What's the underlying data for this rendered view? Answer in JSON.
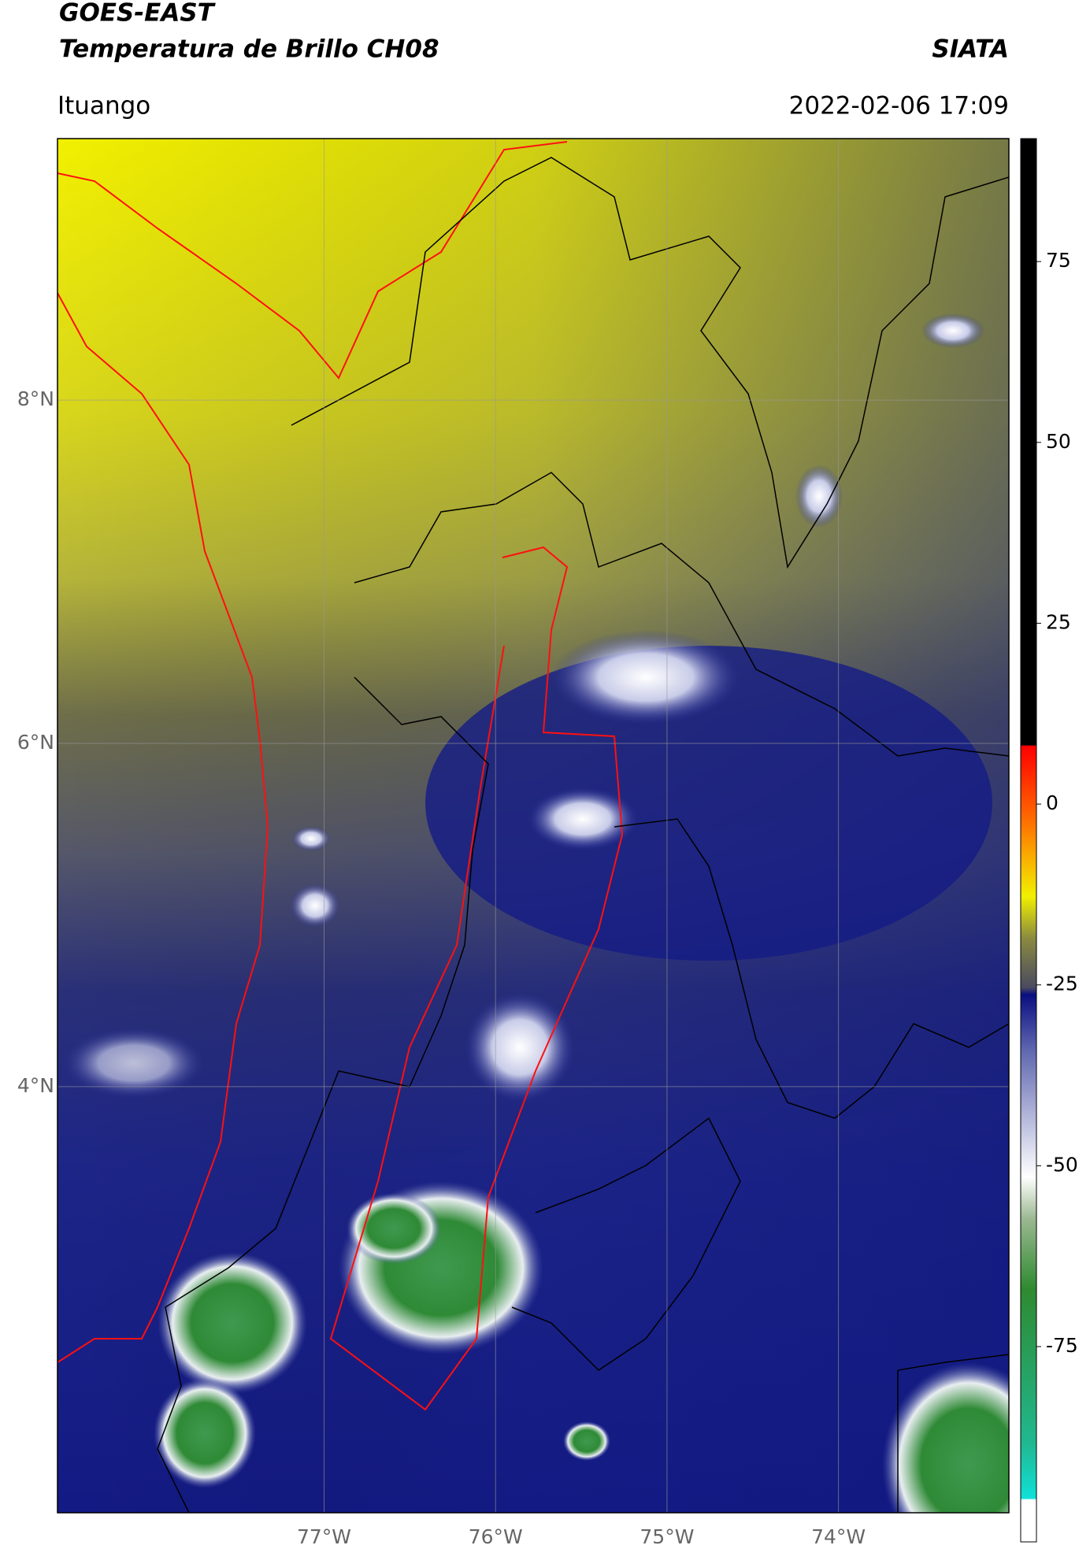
{
  "header": {
    "title": "GOES-EAST",
    "subtitle": "Temperatura de Brillo CH08",
    "source": "SIATA",
    "location": "Ituango",
    "datetime": "2022-02-06 17:09"
  },
  "map": {
    "xlim": [
      -78.555,
      -73.006
    ],
    "ylim": [
      1.517,
      9.524
    ],
    "xticks": [
      {
        "value": -77,
        "label": "77°W"
      },
      {
        "value": -76,
        "label": "76°W"
      },
      {
        "value": -75,
        "label": "75°W"
      },
      {
        "value": -74,
        "label": "74°W"
      }
    ],
    "yticks": [
      {
        "value": 8,
        "label": "8°N"
      },
      {
        "value": 6,
        "label": "6°N"
      },
      {
        "value": 4,
        "label": "4°N"
      }
    ],
    "grid": true
  },
  "colorbar": {
    "lim": [
      -102,
      92
    ],
    "ticks": [
      75,
      50,
      25,
      0,
      -25,
      -50,
      -75
    ]
  }
}
